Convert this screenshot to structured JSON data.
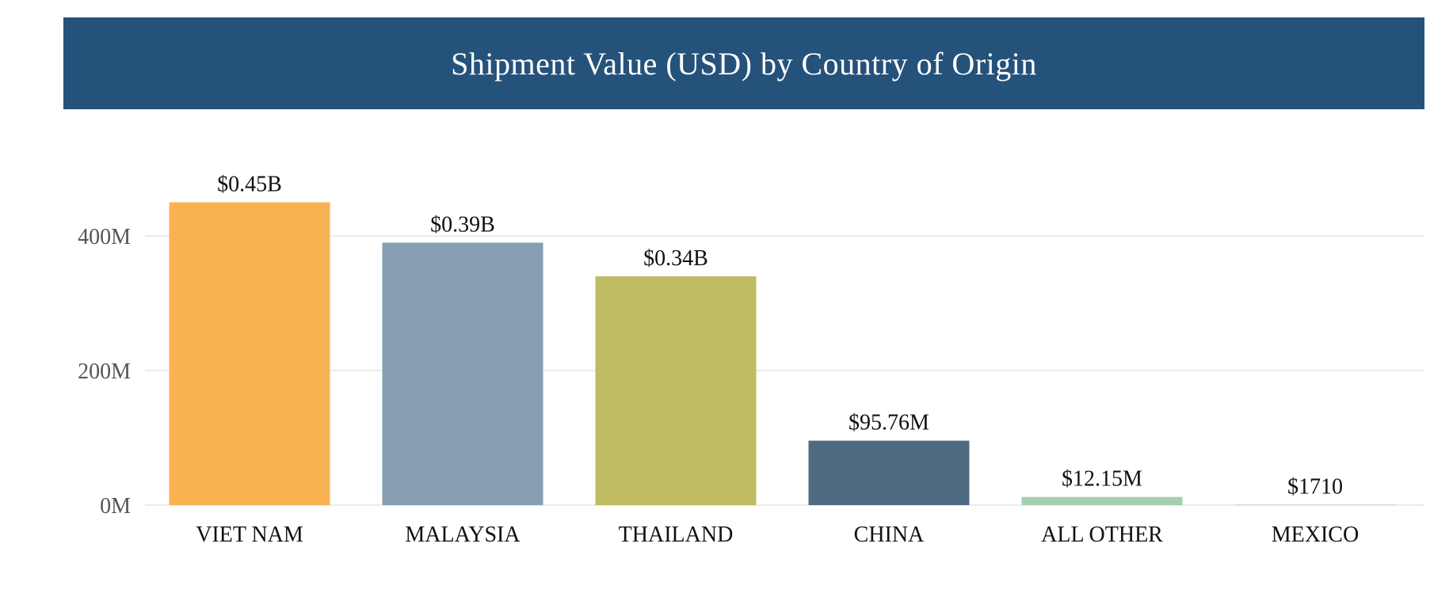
{
  "chart_data": {
    "type": "bar",
    "title": "Shipment Value (USD) by Country of Origin",
    "xlabel": "",
    "ylabel": "",
    "categories": [
      "VIET NAM",
      "MALAYSIA",
      "THAILAND",
      "CHINA",
      "ALL OTHER",
      "MEXICO"
    ],
    "values": [
      450000000,
      390000000,
      340000000,
      95760000,
      12150000,
      1710
    ],
    "data_labels": [
      "$0.45B",
      "$0.39B",
      "$0.34B",
      "$95.76M",
      "$12.15M",
      "$1710"
    ],
    "colors": [
      "#f9b252",
      "#869fb2",
      "#bfbb63",
      "#506a82",
      "#a5cfae",
      "#8fa9bf"
    ],
    "yticks": [
      0,
      200000000,
      400000000
    ],
    "ytick_labels": [
      "0M",
      "200M",
      "400M"
    ],
    "ylim": [
      0,
      450000000
    ],
    "grid": true,
    "legend": "none"
  },
  "colors": {
    "header_background": "#24527a",
    "header_text": "#ffffff",
    "gridline": "#ebebeb"
  }
}
